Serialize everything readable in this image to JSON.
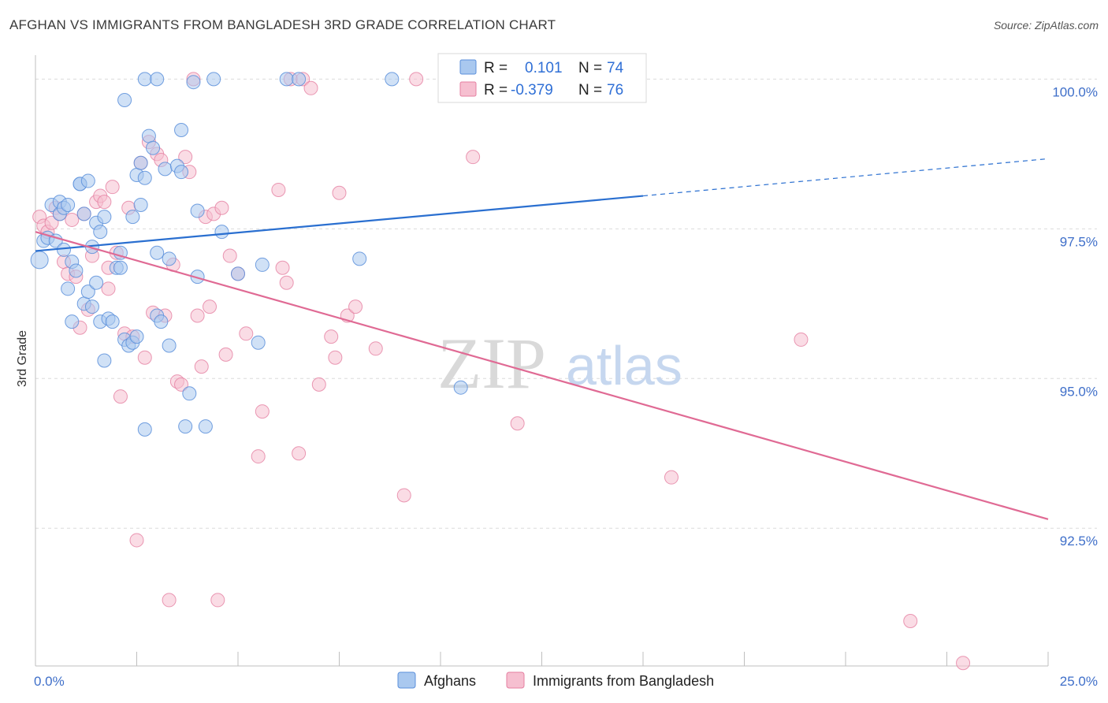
{
  "title": "AFGHAN VS IMMIGRANTS FROM BANGLADESH 3RD GRADE CORRELATION CHART",
  "source": "Source: ZipAtlas.com",
  "watermark": {
    "zip": "ZIP",
    "atlas": "atlas"
  },
  "colors": {
    "afghans_fill": "#a9c8ef",
    "afghans_stroke": "#5b8fdb",
    "afghans_line": "#2a6fd0",
    "bangladesh_fill": "#f6bfd0",
    "bangladesh_stroke": "#e57fa1",
    "bangladesh_line": "#e06a94",
    "tick_label": "#3f6fc9",
    "grid": "#dcdcdc"
  },
  "legend": {
    "rows": [
      {
        "r_label": "R =",
        "r_value": "0.101",
        "n_label": "N =",
        "n_value": "74"
      },
      {
        "r_label": "R =",
        "r_value": "-0.379",
        "n_label": "N =",
        "n_value": "76"
      }
    ]
  },
  "bottom_legend": [
    "Afghans",
    "Immigrants from Bangladesh"
  ],
  "chart_data": {
    "type": "scatter",
    "title": "AFGHAN VS IMMIGRANTS FROM BANGLADESH 3RD GRADE CORRELATION CHART",
    "xlabel": "",
    "ylabel": "3rd Grade",
    "xlim": [
      0,
      25
    ],
    "ylim": [
      90.2,
      100.4
    ],
    "x_tick_labels": [
      "0.0%",
      "25.0%"
    ],
    "y_ticks": [
      92.5,
      95.0,
      97.5,
      100.0
    ],
    "y_tick_labels": [
      "92.5%",
      "95.0%",
      "97.5%",
      "100.0%"
    ],
    "grid": "horizontal dashed",
    "legend_position": "top-center",
    "series": [
      {
        "name": "Afghans",
        "trend": {
          "x0": 0,
          "y0": 97.13,
          "x1": 15,
          "y1": 98.05,
          "x_ext": 25,
          "y_ext": 98.67
        },
        "points": [
          [
            0.2,
            97.3
          ],
          [
            0.3,
            97.35
          ],
          [
            0.4,
            97.9
          ],
          [
            0.5,
            97.3
          ],
          [
            0.6,
            97.75
          ],
          [
            0.6,
            97.95
          ],
          [
            0.7,
            97.85
          ],
          [
            0.8,
            97.9
          ],
          [
            0.1,
            96.98
          ],
          [
            0.7,
            97.15
          ],
          [
            0.8,
            96.5
          ],
          [
            0.9,
            96.95
          ],
          [
            1.0,
            96.8
          ],
          [
            0.9,
            95.95
          ],
          [
            1.1,
            98.25
          ],
          [
            1.1,
            98.25
          ],
          [
            1.2,
            97.75
          ],
          [
            1.3,
            98.3
          ],
          [
            1.2,
            96.25
          ],
          [
            1.3,
            96.45
          ],
          [
            1.4,
            96.2
          ],
          [
            1.4,
            97.2
          ],
          [
            1.5,
            97.6
          ],
          [
            1.6,
            97.45
          ],
          [
            1.5,
            96.6
          ],
          [
            1.6,
            95.95
          ],
          [
            1.7,
            97.7
          ],
          [
            1.7,
            95.3
          ],
          [
            1.8,
            96.0
          ],
          [
            1.9,
            95.95
          ],
          [
            2.0,
            96.85
          ],
          [
            2.1,
            96.85
          ],
          [
            2.1,
            97.1
          ],
          [
            2.2,
            99.65
          ],
          [
            2.2,
            95.65
          ],
          [
            2.3,
            95.55
          ],
          [
            2.4,
            95.6
          ],
          [
            2.4,
            97.7
          ],
          [
            2.5,
            98.4
          ],
          [
            2.5,
            95.7
          ],
          [
            2.6,
            97.9
          ],
          [
            2.6,
            98.6
          ],
          [
            2.7,
            98.35
          ],
          [
            2.7,
            94.15
          ],
          [
            2.8,
            99.05
          ],
          [
            2.9,
            98.85
          ],
          [
            2.7,
            100.0
          ],
          [
            3.0,
            100.0
          ],
          [
            3.0,
            97.1
          ],
          [
            3.0,
            96.05
          ],
          [
            3.1,
            95.95
          ],
          [
            3.2,
            98.5
          ],
          [
            3.3,
            97.0
          ],
          [
            3.3,
            95.55
          ],
          [
            3.5,
            98.55
          ],
          [
            3.6,
            99.15
          ],
          [
            3.6,
            98.45
          ],
          [
            3.7,
            94.2
          ],
          [
            3.8,
            94.75
          ],
          [
            3.9,
            99.95
          ],
          [
            4.0,
            96.7
          ],
          [
            4.0,
            97.8
          ],
          [
            4.2,
            94.2
          ],
          [
            4.4,
            100.0
          ],
          [
            4.6,
            97.45
          ],
          [
            5.0,
            96.75
          ],
          [
            5.6,
            96.9
          ],
          [
            5.5,
            95.6
          ],
          [
            6.2,
            100.0
          ],
          [
            6.5,
            100.0
          ],
          [
            8.0,
            97.0
          ],
          [
            8.8,
            100.0
          ],
          [
            10.5,
            94.85
          ],
          [
            10.5,
            100.0
          ]
        ]
      },
      {
        "name": "Immigrants from Bangladesh",
        "trend": {
          "x0": 0,
          "y0": 97.45,
          "x1": 25,
          "y1": 92.65
        },
        "points": [
          [
            0.1,
            97.7
          ],
          [
            0.2,
            97.55
          ],
          [
            0.3,
            97.45
          ],
          [
            0.4,
            97.6
          ],
          [
            0.5,
            97.85
          ],
          [
            0.6,
            97.75
          ],
          [
            0.7,
            96.95
          ],
          [
            0.8,
            96.75
          ],
          [
            0.9,
            97.65
          ],
          [
            1.0,
            96.7
          ],
          [
            1.1,
            95.85
          ],
          [
            1.2,
            97.75
          ],
          [
            1.3,
            96.15
          ],
          [
            1.4,
            97.05
          ],
          [
            1.5,
            97.95
          ],
          [
            1.6,
            98.05
          ],
          [
            1.7,
            97.95
          ],
          [
            1.8,
            96.5
          ],
          [
            1.8,
            96.85
          ],
          [
            1.9,
            98.2
          ],
          [
            2.0,
            97.1
          ],
          [
            2.1,
            94.7
          ],
          [
            2.2,
            95.75
          ],
          [
            2.3,
            97.85
          ],
          [
            2.4,
            95.7
          ],
          [
            2.5,
            92.3
          ],
          [
            2.6,
            98.6
          ],
          [
            2.7,
            95.35
          ],
          [
            2.8,
            98.95
          ],
          [
            2.9,
            96.1
          ],
          [
            3.0,
            98.75
          ],
          [
            3.1,
            98.65
          ],
          [
            3.2,
            96.05
          ],
          [
            3.3,
            91.3
          ],
          [
            3.4,
            96.9
          ],
          [
            3.5,
            94.95
          ],
          [
            3.6,
            94.9
          ],
          [
            3.7,
            98.7
          ],
          [
            3.8,
            98.45
          ],
          [
            3.9,
            100.0
          ],
          [
            4.0,
            96.05
          ],
          [
            4.1,
            95.2
          ],
          [
            4.2,
            97.7
          ],
          [
            4.3,
            96.2
          ],
          [
            4.4,
            97.75
          ],
          [
            4.5,
            91.3
          ],
          [
            4.6,
            97.85
          ],
          [
            4.7,
            95.4
          ],
          [
            4.8,
            97.05
          ],
          [
            5.0,
            96.75
          ],
          [
            5.2,
            95.75
          ],
          [
            5.5,
            93.7
          ],
          [
            5.6,
            94.45
          ],
          [
            6.0,
            98.15
          ],
          [
            6.1,
            96.85
          ],
          [
            6.2,
            96.6
          ],
          [
            6.3,
            100.0
          ],
          [
            6.5,
            93.75
          ],
          [
            6.6,
            100.0
          ],
          [
            6.8,
            99.85
          ],
          [
            7.0,
            94.9
          ],
          [
            7.3,
            95.7
          ],
          [
            7.4,
            95.35
          ],
          [
            7.5,
            98.1
          ],
          [
            7.7,
            96.05
          ],
          [
            7.9,
            96.2
          ],
          [
            8.4,
            95.5
          ],
          [
            9.1,
            93.05
          ],
          [
            9.4,
            100.0
          ],
          [
            10.2,
            100.0
          ],
          [
            10.8,
            98.7
          ],
          [
            11.9,
            94.25
          ],
          [
            15.7,
            93.35
          ],
          [
            18.9,
            95.65
          ],
          [
            21.6,
            90.95
          ],
          [
            22.9,
            90.25
          ]
        ]
      }
    ]
  }
}
